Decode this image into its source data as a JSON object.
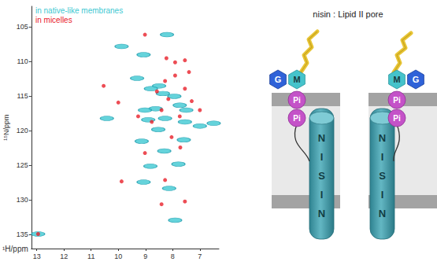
{
  "chart_data": {
    "type": "scatter",
    "x_label": "¹H/ppm",
    "y_label": "¹⁵N/ppm",
    "xlim": [
      13.2,
      6.3
    ],
    "ylim": [
      137,
      102
    ],
    "xticks": [
      13,
      12,
      11,
      10,
      9,
      8,
      7
    ],
    "yticks": [
      105,
      110,
      115,
      120,
      125,
      130,
      135
    ],
    "grid": false,
    "legend": "upper left",
    "series": [
      {
        "name": "in native-like membranes",
        "color": "#3ec8d2",
        "marker": "ellipse",
        "x": [
          9.88,
          9.07,
          8.21,
          9.31,
          8.5,
          8.8,
          8.36,
          7.94,
          7.74,
          7.5,
          7.0,
          8.63,
          9.02,
          10.42,
          9.14,
          8.53,
          7.59,
          6.49,
          7.55,
          8.31,
          8.82,
          7.79,
          9.07,
          8.13,
          7.91,
          12.95,
          8.9,
          8.28
        ],
        "values": [
          107.8,
          109.0,
          106.1,
          112.4,
          113.5,
          113.9,
          114.6,
          115.0,
          116.3,
          117.0,
          119.3,
          116.8,
          117.0,
          118.2,
          121.5,
          119.8,
          121.3,
          118.9,
          118.7,
          122.9,
          125.1,
          124.8,
          127.4,
          128.3,
          132.9,
          134.9,
          118.4,
          118.2
        ]
      },
      {
        "name": "in micelles",
        "color": "#e8212b",
        "marker": "circle",
        "x": [
          9.02,
          8.23,
          7.91,
          7.55,
          7.4,
          10.54,
          7.91,
          8.28,
          8.58,
          8.16,
          7.55,
          7.74,
          7.3,
          8.41,
          8.77,
          10.0,
          9.27,
          8.04,
          7.72,
          9.02,
          9.88,
          8.28,
          7.55,
          8.41,
          12.95,
          7.0
        ],
        "values": [
          106.1,
          109.5,
          110.1,
          109.8,
          111.5,
          113.5,
          112.0,
          112.8,
          114.3,
          115.4,
          113.9,
          117.9,
          115.7,
          117.0,
          118.7,
          115.9,
          117.9,
          120.9,
          122.4,
          123.2,
          127.3,
          127.1,
          130.2,
          130.6,
          134.9,
          117.0
        ]
      }
    ]
  },
  "diagram": {
    "title": "nisin : Lipid II pore",
    "lipid_II": [
      "G",
      "M",
      "Pi",
      "Pi"
    ],
    "helix_label": "NISIN"
  }
}
